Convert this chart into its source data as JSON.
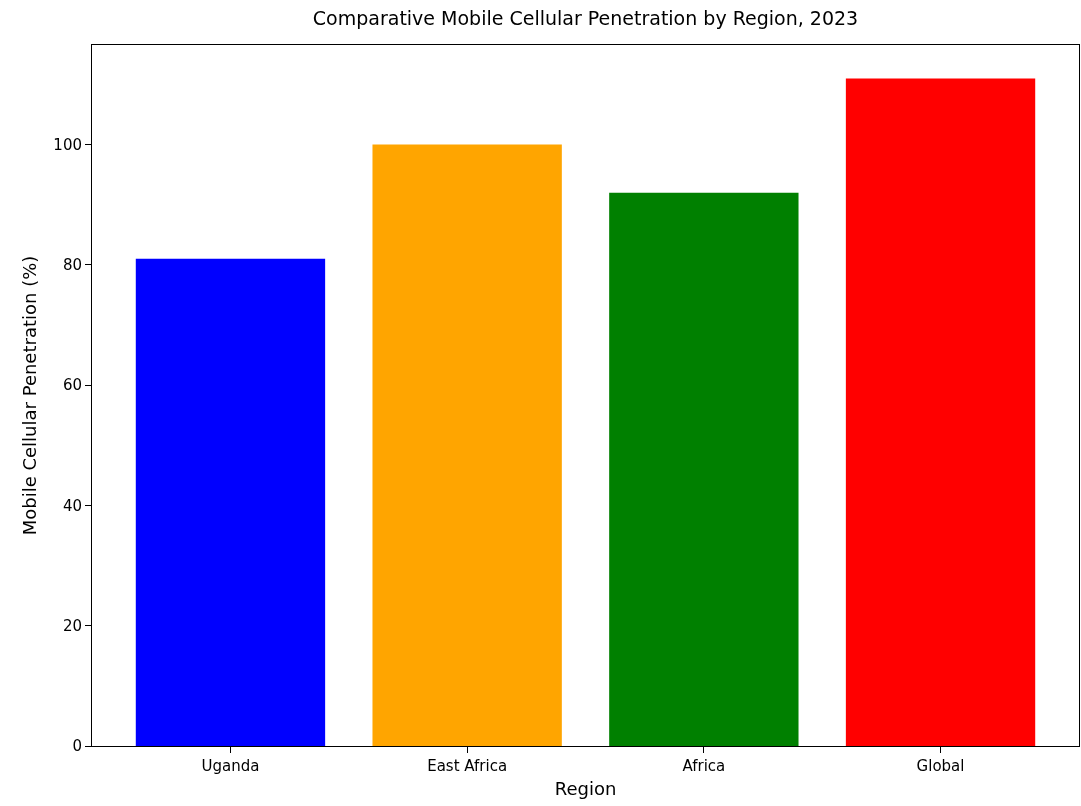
{
  "chart_data": {
    "type": "bar",
    "title": "Comparative Mobile Cellular Penetration by Region, 2023",
    "xlabel": "Region",
    "ylabel": "Mobile Cellular Penetration (%)",
    "categories": [
      "Uganda",
      "East Africa",
      "Africa",
      "Global"
    ],
    "values": [
      81,
      100,
      92,
      111
    ],
    "colors": [
      "#0000ff",
      "#ffa500",
      "#008000",
      "#ff0000"
    ],
    "ylim": [
      0,
      116.55
    ],
    "yticks": [
      0,
      20,
      40,
      60,
      80,
      100
    ]
  }
}
